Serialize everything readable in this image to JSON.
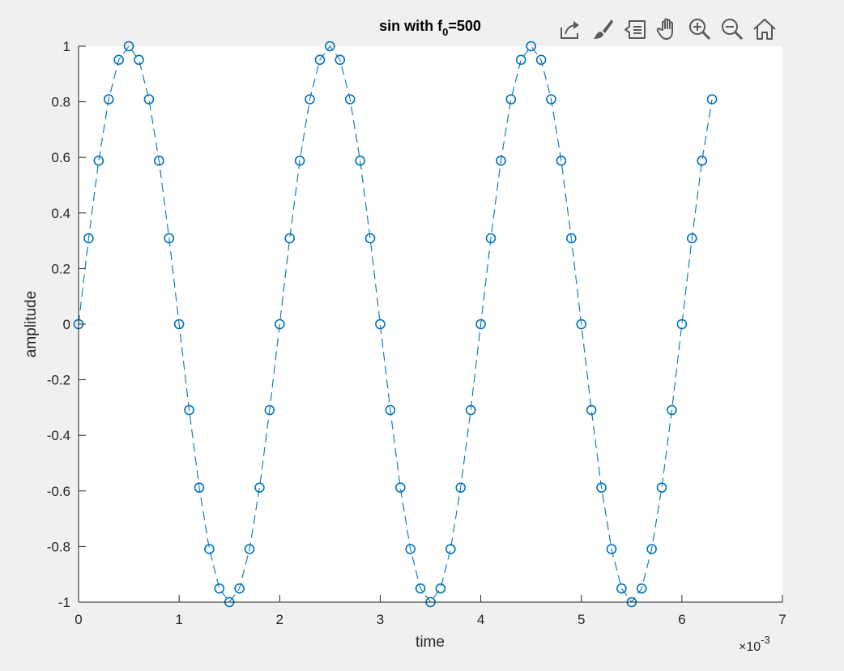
{
  "toolbar": {
    "icons": [
      "export-icon",
      "brush-icon",
      "datatip-icon",
      "pan-icon",
      "zoom-in-icon",
      "zoom-out-icon",
      "home-icon"
    ]
  },
  "chart_data": {
    "type": "line",
    "title_main": "sin with f",
    "title_sub": "0",
    "title_tail": "=500",
    "xlabel": "time",
    "ylabel": "amplitude",
    "x_exponent_base": "×10",
    "x_exponent_power": "-3",
    "xlim": [
      0,
      7
    ],
    "ylim": [
      -1,
      1
    ],
    "xticks": [
      0,
      1,
      2,
      3,
      4,
      5,
      6,
      7
    ],
    "xtick_labels": [
      "0",
      "1",
      "2",
      "3",
      "4",
      "5",
      "6",
      "7"
    ],
    "yticks": [
      -1,
      -0.8,
      -0.6,
      -0.4,
      -0.2,
      0,
      0.2,
      0.4,
      0.6,
      0.8,
      1
    ],
    "ytick_labels": [
      "-1",
      "-0.8",
      "-0.6",
      "-0.4",
      "-0.2",
      "0",
      "0.2",
      "0.4",
      "0.6",
      "0.8",
      "1"
    ],
    "grid": false,
    "series": [
      {
        "line_style": "dashed",
        "marker": "circle",
        "color": "#0072bd",
        "x": [
          0,
          0.1,
          0.2,
          0.3,
          0.4,
          0.5,
          0.6,
          0.7,
          0.8,
          0.9,
          1.0,
          1.1,
          1.2,
          1.3,
          1.4,
          1.5,
          1.6,
          1.7,
          1.8,
          1.9,
          2.0,
          2.1,
          2.2,
          2.3,
          2.4,
          2.5,
          2.6,
          2.7,
          2.8,
          2.9,
          3.0,
          3.1,
          3.2,
          3.3,
          3.4,
          3.5,
          3.6,
          3.7,
          3.8,
          3.9,
          4.0,
          4.1,
          4.2,
          4.3,
          4.4,
          4.5,
          4.6,
          4.7,
          4.8,
          4.9,
          5.0,
          5.1,
          5.2,
          5.3,
          5.4,
          5.5,
          5.6,
          5.7,
          5.8,
          5.9,
          6.0,
          6.1,
          6.2,
          6.3
        ],
        "y": [
          0,
          0.309,
          0.588,
          0.809,
          0.951,
          1,
          0.951,
          0.809,
          0.588,
          0.309,
          0,
          -0.309,
          -0.588,
          -0.809,
          -0.951,
          -1,
          -0.951,
          -0.809,
          -0.588,
          -0.309,
          0,
          0.309,
          0.588,
          0.809,
          0.951,
          1,
          0.951,
          0.809,
          0.588,
          0.309,
          0,
          -0.309,
          -0.588,
          -0.809,
          -0.951,
          -1,
          -0.951,
          -0.809,
          -0.588,
          -0.309,
          0,
          0.309,
          0.588,
          0.809,
          0.951,
          1,
          0.951,
          0.809,
          0.588,
          0.309,
          0,
          -0.309,
          -0.588,
          -0.809,
          -0.951,
          -1,
          -0.951,
          -0.809,
          -0.588,
          -0.309,
          0,
          0.309,
          0.588,
          0.809
        ]
      }
    ]
  }
}
